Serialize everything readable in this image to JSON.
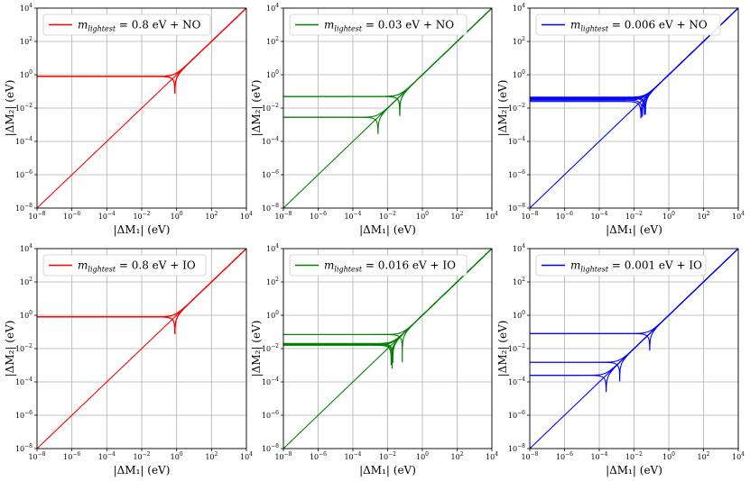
{
  "chart_data": [
    {
      "type": "line",
      "xlabel": "|ΔM₁| (eV)",
      "ylabel": "|ΔM₂| (eV)",
      "xscale": "log",
      "yscale": "log",
      "xlim": [
        1e-08,
        10000.0
      ],
      "ylim": [
        1e-08,
        10000.0
      ],
      "grid": true,
      "legend_position": "top-left",
      "color": "#ff0000",
      "series": [
        {
          "name": "m_lightest = 0.8 eV + NO",
          "y_plateau": 0.8,
          "x_pole": 0.8
        }
      ],
      "extra_plateaus": [
        0.8,
        0.8
      ],
      "extra_poles": [
        0.8,
        0.8
      ]
    },
    {
      "type": "line",
      "xlabel": "|ΔM₁| (eV)",
      "ylabel": "|ΔM₂| (eV)",
      "xscale": "log",
      "yscale": "log",
      "xlim": [
        1e-08,
        10000.0
      ],
      "ylim": [
        1e-08,
        10000.0
      ],
      "grid": true,
      "legend_position": "top-left",
      "color": "#008000",
      "series": [
        {
          "name": "m_lightest = 0.03 eV + NO",
          "y_plateau": 0.05,
          "x_pole": 0.05
        }
      ],
      "extra_plateaus": [
        0.05,
        0.0028
      ],
      "extra_poles": [
        0.0028,
        0.05
      ]
    },
    {
      "type": "line",
      "xlabel": "|ΔM₁| (eV)",
      "ylabel": "|ΔM₂| (eV)",
      "xscale": "log",
      "yscale": "log",
      "xlim": [
        1e-08,
        10000.0
      ],
      "ylim": [
        1e-08,
        10000.0
      ],
      "grid": true,
      "legend_position": "top-left",
      "color": "#0000ff",
      "series": [
        {
          "name": "m_lightest = 0.006 eV + NO",
          "y_plateau": 0.045,
          "x_pole": 0.045
        }
      ],
      "extra_plateaus": [
        0.035,
        0.03,
        0.04
      ],
      "extra_poles": [
        0.025,
        0.03,
        0.04
      ]
    },
    {
      "type": "line",
      "xlabel": "|ΔM₁| (eV)",
      "ylabel": "|ΔM₂| (eV)",
      "xscale": "log",
      "yscale": "log",
      "xlim": [
        1e-08,
        10000.0
      ],
      "ylim": [
        1e-08,
        10000.0
      ],
      "grid": true,
      "legend_position": "top-left",
      "color": "#ff0000",
      "series": [
        {
          "name": "m_lightest = 0.8 eV + IO",
          "y_plateau": 0.8,
          "x_pole": 0.8
        }
      ],
      "extra_plateaus": [
        0.8,
        0.8
      ],
      "extra_poles": [
        0.8,
        0.8
      ]
    },
    {
      "type": "line",
      "xlabel": "|ΔM₁| (eV)",
      "ylabel": "|ΔM₂| (eV)",
      "xscale": "log",
      "yscale": "log",
      "xlim": [
        1e-08,
        10000.0
      ],
      "ylim": [
        1e-08,
        10000.0
      ],
      "grid": true,
      "legend_position": "top-left",
      "color": "#008000",
      "series": [
        {
          "name": "m_lightest = 0.016 eV + IO",
          "y_plateau": 0.07,
          "x_pole": 0.07
        }
      ],
      "extra_plateaus": [
        0.018,
        0.016,
        0.02
      ],
      "extra_poles": [
        0.016,
        0.018,
        0.02
      ]
    },
    {
      "type": "line",
      "xlabel": "|ΔM₁| (eV)",
      "ylabel": "|ΔM₂| (eV)",
      "xscale": "log",
      "yscale": "log",
      "xlim": [
        1e-08,
        10000.0
      ],
      "ylim": [
        1e-08,
        10000.0
      ],
      "grid": true,
      "legend_position": "top-left",
      "color": "#0000ff",
      "series": [
        {
          "name": "m_lightest = 0.001 eV + IO",
          "y_plateau": 0.08,
          "x_pole": 0.08
        }
      ],
      "extra_plateaus": [
        0.0015,
        0.00025
      ],
      "extra_poles": [
        0.00025,
        0.0015
      ]
    }
  ],
  "tick_labels": {
    "values": [
      "10",
      "10",
      "10",
      "10",
      "10",
      "10",
      "10"
    ],
    "exponents": [
      "−8",
      "−6",
      "−4",
      "−2",
      "0",
      "2",
      "4"
    ]
  },
  "legend_parts": [
    {
      "symbol": "m",
      "sub": "lightest",
      "text": " = 0.8 eV + NO"
    },
    {
      "symbol": "m",
      "sub": "lightest",
      "text": " = 0.03 eV + NO"
    },
    {
      "symbol": "m",
      "sub": "lightest",
      "text": " = 0.006 eV + NO"
    },
    {
      "symbol": "m",
      "sub": "lightest",
      "text": " = 0.8 eV + IO"
    },
    {
      "symbol": "m",
      "sub": "lightest",
      "text": " = 0.016 eV + IO"
    },
    {
      "symbol": "m",
      "sub": "lightest",
      "text": " = 0.001 eV + IO"
    }
  ]
}
